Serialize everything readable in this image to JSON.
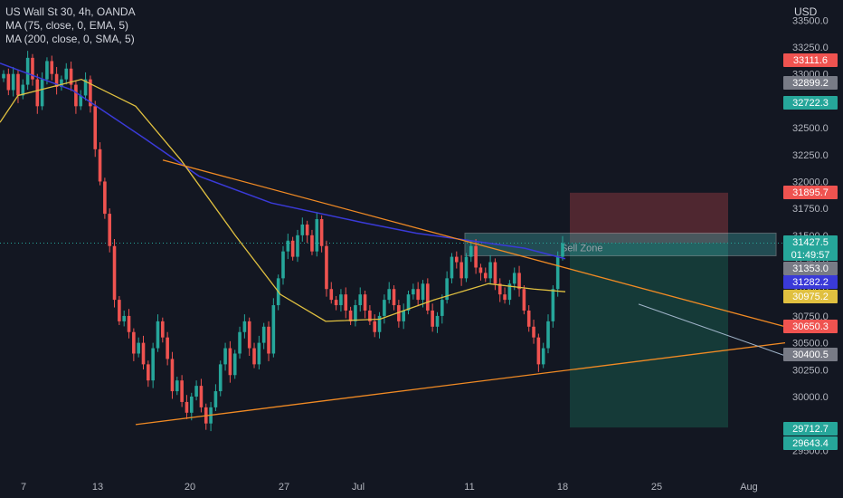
{
  "legend": {
    "symbol": "US Wall St 30, 4h, OANDA",
    "ma1": "MA (75, close, 0, EMA, 5)",
    "ma2": "MA (200, close, 0, SMA, 5)"
  },
  "currency": "USD",
  "colors": {
    "background": "#131722",
    "up": "#26a69a",
    "down": "#ef5350",
    "ema75": "#e0c040",
    "sma200": "#3a3ad8",
    "trendline": "#f08a24",
    "stop_zone": "#5b2a33",
    "target_zone": "#163e3b"
  },
  "chart_data": {
    "type": "candlestick",
    "timeframe": "4h",
    "ylim": [
      29400,
      33500
    ],
    "y_ticks": [
      "29500.0",
      "30000.0",
      "30250.0",
      "30500.0",
      "30750.0",
      "31000.0",
      "31250.0",
      "31500.0",
      "31750.0",
      "32000.0",
      "32250.0",
      "32500.0",
      "32750.0",
      "33000.0",
      "33250.0",
      "33500.0"
    ],
    "x_ticks": [
      "7",
      "13",
      "20",
      "27",
      "Jul",
      "11",
      "18",
      "25",
      "Aug"
    ],
    "price_tags": [
      {
        "value": "33111.6",
        "color": "#ef5350"
      },
      {
        "value": "32899.2",
        "color": "#787b86"
      },
      {
        "value": "32722.3",
        "color": "#26a69a"
      },
      {
        "value": "31895.7",
        "color": "#ef5350"
      },
      {
        "value": "31427.5",
        "color": "#26a69a",
        "sub": "01:49:57"
      },
      {
        "value": "31353.0",
        "color": "#787b86"
      },
      {
        "value": "31282.2",
        "color": "#3a3ad8"
      },
      {
        "value": "30975.2",
        "color": "#e0c040"
      },
      {
        "value": "30650.3",
        "color": "#ef5350"
      },
      {
        "value": "30400.5",
        "color": "#787b86"
      },
      {
        "value": "29712.7",
        "color": "#26a69a"
      },
      {
        "value": "29643.4",
        "color": "#26a69a"
      }
    ],
    "annotation": "Sell Zone",
    "zone": {
      "entry": 31427.5,
      "top": 31520,
      "stop": 31895.7,
      "target": 29712.7
    },
    "candles_close": [
      33000,
      32850,
      33000,
      32800,
      32900,
      33150,
      32950,
      32700,
      32950,
      33120,
      33000,
      32880,
      32950,
      33050,
      32900,
      32700,
      32800,
      32950,
      32700,
      32300,
      32000,
      31700,
      31400,
      30900,
      30700,
      30750,
      30600,
      30400,
      30500,
      30300,
      30150,
      30450,
      30700,
      30550,
      30350,
      30050,
      30150,
      29950,
      29850,
      30000,
      30100,
      29900,
      29750,
      29900,
      30050,
      30300,
      30450,
      30200,
      30400,
      30600,
      30700,
      30450,
      30300,
      30500,
      30650,
      30400,
      30850,
      31100,
      31350,
      31450,
      31300,
      31500,
      31600,
      31500,
      31350,
      31650,
      31400,
      31000,
      30900,
      30850,
      30950,
      30800,
      30700,
      30850,
      30950,
      30800,
      30700,
      30600,
      30750,
      30900,
      31000,
      30850,
      30700,
      30800,
      30950,
      31000,
      30900,
      31050,
      30800,
      30650,
      30750,
      30900,
      31100,
      31300,
      31250,
      31100,
      31300,
      31400,
      31200,
      31150,
      31100,
      31250,
      31050,
      30950,
      30900,
      31050,
      31150,
      31000,
      30800,
      30650,
      30550,
      30300,
      30450,
      30700,
      31000,
      31300,
      31427.5
    ],
    "ema75": [
      [
        0,
        32550
      ],
      [
        20,
        32800
      ],
      [
        90,
        32950
      ],
      [
        150,
        32700
      ],
      [
        200,
        32200
      ],
      [
        260,
        31500
      ],
      [
        310,
        30950
      ],
      [
        360,
        30700
      ],
      [
        420,
        30720
      ],
      [
        480,
        30900
      ],
      [
        540,
        31050
      ],
      [
        590,
        31000
      ],
      [
        625,
        30975
      ]
    ],
    "sma200": [
      [
        0,
        33100
      ],
      [
        80,
        32850
      ],
      [
        160,
        32400
      ],
      [
        220,
        32050
      ],
      [
        300,
        31800
      ],
      [
        400,
        31620
      ],
      [
        460,
        31520
      ],
      [
        520,
        31450
      ],
      [
        580,
        31380
      ],
      [
        625,
        31282
      ]
    ],
    "trendlines": [
      {
        "from": [
          180,
          32200
        ],
        "to": [
          868,
          30650
        ]
      },
      {
        "from": [
          150,
          29740
        ],
        "to": [
          868,
          30500
        ]
      }
    ],
    "arrow": {
      "from": [
        706,
        30860
      ],
      "to": [
        868,
        30380
      ]
    }
  }
}
